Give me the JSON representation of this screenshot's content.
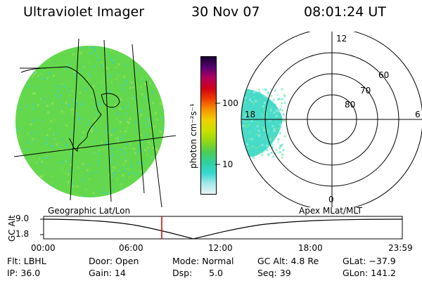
{
  "header": {
    "title": "Ultraviolet Imager",
    "date": "30 Nov 07",
    "time": "08:01:24 UT"
  },
  "colorbar": {
    "unit_label": "photon cm⁻²s⁻¹",
    "ticks": [
      "100",
      "10"
    ],
    "scale": "log",
    "colors": [
      "#1a0033",
      "#5a0070",
      "#b00060",
      "#d00018",
      "#f04000",
      "#f59000",
      "#f0d000",
      "#c8e000",
      "#90d818",
      "#50cc50",
      "#30d0a0",
      "#38d8d0",
      "#a0e8e8",
      "#e6f5f5"
    ]
  },
  "geo_panel": {
    "caption": "Geographic Lat/Lon",
    "fill_color": "#64d84c"
  },
  "polar_panel": {
    "caption": "Apex MLat/MLT",
    "mlt_labels": [
      "12",
      "6",
      "0",
      "18"
    ],
    "lat_labels": [
      "60",
      "70",
      "80"
    ],
    "fill_color": "#48dcc8"
  },
  "altitude_plot": {
    "ylabel": "GC Alt",
    "yticks": [
      "9.0",
      "1.8"
    ],
    "xticks": [
      "00:00",
      "06:00",
      "12:00",
      "18:00",
      "23:59"
    ],
    "marker_time": "08:01",
    "marker_color": "#cc0000"
  },
  "info": {
    "flt": "Flt: LBHL",
    "ip": "IP: 36.0",
    "door": "Door: Open",
    "gain": "Gain: 14",
    "mode": "Mode: Normal",
    "dsp": "Dsp:      5.0",
    "gcalt": "GC Alt: 4.8 Re",
    "seq": "Seq: 39",
    "glat": "GLat: −37.9",
    "glon": "GLon: 141.2"
  }
}
